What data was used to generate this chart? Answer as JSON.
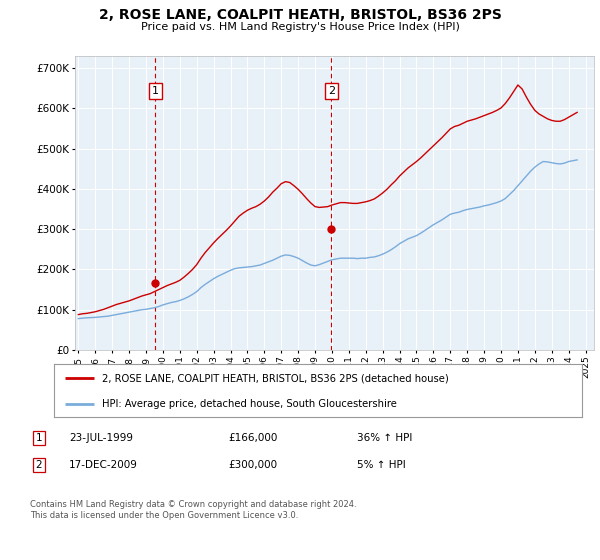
{
  "title": "2, ROSE LANE, COALPIT HEATH, BRISTOL, BS36 2PS",
  "subtitle": "Price paid vs. HM Land Registry's House Price Index (HPI)",
  "background_color": "#ffffff",
  "plot_bg_color": "#e8f0f8",
  "grid_color": "#ffffff",
  "red_line_color": "#cc0000",
  "blue_line_color": "#7aacdc",
  "marker1_x": 1999.56,
  "marker1_y": 166000,
  "marker1_label": "1",
  "marker2_x": 2009.96,
  "marker2_y": 300000,
  "marker2_label": "2",
  "vline1_x": 1999.56,
  "vline2_x": 2009.96,
  "ylim": [
    0,
    730000
  ],
  "xlim": [
    1994.8,
    2025.5
  ],
  "yticks": [
    0,
    100000,
    200000,
    300000,
    400000,
    500000,
    600000,
    700000
  ],
  "ytick_labels": [
    "£0",
    "£100K",
    "£200K",
    "£300K",
    "£400K",
    "£500K",
    "£600K",
    "£700K"
  ],
  "xtick_years": [
    1995,
    1996,
    1997,
    1998,
    1999,
    2000,
    2001,
    2002,
    2003,
    2004,
    2005,
    2006,
    2007,
    2008,
    2009,
    2010,
    2011,
    2012,
    2013,
    2014,
    2015,
    2016,
    2017,
    2018,
    2019,
    2020,
    2021,
    2022,
    2023,
    2024,
    2025
  ],
  "legend_red_label": "2, ROSE LANE, COALPIT HEATH, BRISTOL, BS36 2PS (detached house)",
  "legend_blue_label": "HPI: Average price, detached house, South Gloucestershire",
  "table_rows": [
    {
      "num": "1",
      "date": "23-JUL-1999",
      "price": "£166,000",
      "hpi": "36% ↑ HPI"
    },
    {
      "num": "2",
      "date": "17-DEC-2009",
      "price": "£300,000",
      "hpi": "5% ↑ HPI"
    }
  ],
  "footnote": "Contains HM Land Registry data © Crown copyright and database right 2024.\nThis data is licensed under the Open Government Licence v3.0.",
  "hpi_blue": [
    [
      1995.0,
      78000
    ],
    [
      1995.25,
      79000
    ],
    [
      1995.5,
      80000
    ],
    [
      1995.75,
      80500
    ],
    [
      1996.0,
      81000
    ],
    [
      1996.25,
      82000
    ],
    [
      1996.5,
      83000
    ],
    [
      1996.75,
      84000
    ],
    [
      1997.0,
      86000
    ],
    [
      1997.25,
      88000
    ],
    [
      1997.5,
      90000
    ],
    [
      1997.75,
      92000
    ],
    [
      1998.0,
      94000
    ],
    [
      1998.25,
      96000
    ],
    [
      1998.5,
      98000
    ],
    [
      1998.75,
      100000
    ],
    [
      1999.0,
      101000
    ],
    [
      1999.25,
      103000
    ],
    [
      1999.5,
      105000
    ],
    [
      1999.75,
      108000
    ],
    [
      2000.0,
      112000
    ],
    [
      2000.25,
      115000
    ],
    [
      2000.5,
      118000
    ],
    [
      2000.75,
      120000
    ],
    [
      2001.0,
      123000
    ],
    [
      2001.25,
      127000
    ],
    [
      2001.5,
      132000
    ],
    [
      2001.75,
      138000
    ],
    [
      2002.0,
      145000
    ],
    [
      2002.25,
      155000
    ],
    [
      2002.5,
      163000
    ],
    [
      2002.75,
      170000
    ],
    [
      2003.0,
      177000
    ],
    [
      2003.25,
      183000
    ],
    [
      2003.5,
      188000
    ],
    [
      2003.75,
      193000
    ],
    [
      2004.0,
      198000
    ],
    [
      2004.25,
      202000
    ],
    [
      2004.5,
      204000
    ],
    [
      2004.75,
      205000
    ],
    [
      2005.0,
      206000
    ],
    [
      2005.25,
      207000
    ],
    [
      2005.5,
      209000
    ],
    [
      2005.75,
      211000
    ],
    [
      2006.0,
      215000
    ],
    [
      2006.25,
      219000
    ],
    [
      2006.5,
      223000
    ],
    [
      2006.75,
      228000
    ],
    [
      2007.0,
      233000
    ],
    [
      2007.25,
      236000
    ],
    [
      2007.5,
      235000
    ],
    [
      2007.75,
      232000
    ],
    [
      2008.0,
      228000
    ],
    [
      2008.25,
      222000
    ],
    [
      2008.5,
      216000
    ],
    [
      2008.75,
      211000
    ],
    [
      2009.0,
      209000
    ],
    [
      2009.25,
      212000
    ],
    [
      2009.5,
      216000
    ],
    [
      2009.75,
      220000
    ],
    [
      2010.0,
      224000
    ],
    [
      2010.25,
      226000
    ],
    [
      2010.5,
      228000
    ],
    [
      2010.75,
      228000
    ],
    [
      2011.0,
      228000
    ],
    [
      2011.25,
      228000
    ],
    [
      2011.5,
      227000
    ],
    [
      2011.75,
      228000
    ],
    [
      2012.0,
      228000
    ],
    [
      2012.25,
      230000
    ],
    [
      2012.5,
      231000
    ],
    [
      2012.75,
      234000
    ],
    [
      2013.0,
      238000
    ],
    [
      2013.25,
      243000
    ],
    [
      2013.5,
      249000
    ],
    [
      2013.75,
      256000
    ],
    [
      2014.0,
      264000
    ],
    [
      2014.25,
      270000
    ],
    [
      2014.5,
      276000
    ],
    [
      2014.75,
      280000
    ],
    [
      2015.0,
      284000
    ],
    [
      2015.25,
      290000
    ],
    [
      2015.5,
      297000
    ],
    [
      2015.75,
      304000
    ],
    [
      2016.0,
      311000
    ],
    [
      2016.25,
      317000
    ],
    [
      2016.5,
      323000
    ],
    [
      2016.75,
      330000
    ],
    [
      2017.0,
      337000
    ],
    [
      2017.25,
      340000
    ],
    [
      2017.5,
      342000
    ],
    [
      2017.75,
      346000
    ],
    [
      2018.0,
      349000
    ],
    [
      2018.25,
      351000
    ],
    [
      2018.5,
      353000
    ],
    [
      2018.75,
      355000
    ],
    [
      2019.0,
      358000
    ],
    [
      2019.25,
      360000
    ],
    [
      2019.5,
      363000
    ],
    [
      2019.75,
      366000
    ],
    [
      2020.0,
      370000
    ],
    [
      2020.25,
      376000
    ],
    [
      2020.5,
      386000
    ],
    [
      2020.75,
      396000
    ],
    [
      2021.0,
      408000
    ],
    [
      2021.25,
      420000
    ],
    [
      2021.5,
      432000
    ],
    [
      2021.75,
      444000
    ],
    [
      2022.0,
      454000
    ],
    [
      2022.25,
      462000
    ],
    [
      2022.5,
      468000
    ],
    [
      2022.75,
      467000
    ],
    [
      2023.0,
      465000
    ],
    [
      2023.25,
      463000
    ],
    [
      2023.5,
      462000
    ],
    [
      2023.75,
      464000
    ],
    [
      2024.0,
      468000
    ],
    [
      2024.25,
      470000
    ],
    [
      2024.5,
      472000
    ]
  ],
  "price_red": [
    [
      1995.0,
      88000
    ],
    [
      1995.25,
      90000
    ],
    [
      1995.5,
      91000
    ],
    [
      1995.75,
      93000
    ],
    [
      1996.0,
      95000
    ],
    [
      1996.25,
      98000
    ],
    [
      1996.5,
      101000
    ],
    [
      1996.75,
      105000
    ],
    [
      1997.0,
      109000
    ],
    [
      1997.25,
      113000
    ],
    [
      1997.5,
      116000
    ],
    [
      1997.75,
      119000
    ],
    [
      1998.0,
      122000
    ],
    [
      1998.25,
      126000
    ],
    [
      1998.5,
      130000
    ],
    [
      1998.75,
      134000
    ],
    [
      1999.0,
      137000
    ],
    [
      1999.25,
      140000
    ],
    [
      1999.5,
      145000
    ],
    [
      1999.75,
      150000
    ],
    [
      2000.0,
      155000
    ],
    [
      2000.25,
      160000
    ],
    [
      2000.5,
      164000
    ],
    [
      2000.75,
      168000
    ],
    [
      2001.0,
      173000
    ],
    [
      2001.25,
      181000
    ],
    [
      2001.5,
      190000
    ],
    [
      2001.75,
      200000
    ],
    [
      2002.0,
      212000
    ],
    [
      2002.25,
      228000
    ],
    [
      2002.5,
      242000
    ],
    [
      2002.75,
      254000
    ],
    [
      2003.0,
      266000
    ],
    [
      2003.25,
      277000
    ],
    [
      2003.5,
      287000
    ],
    [
      2003.75,
      297000
    ],
    [
      2004.0,
      308000
    ],
    [
      2004.25,
      320000
    ],
    [
      2004.5,
      332000
    ],
    [
      2004.75,
      340000
    ],
    [
      2005.0,
      347000
    ],
    [
      2005.25,
      352000
    ],
    [
      2005.5,
      356000
    ],
    [
      2005.75,
      362000
    ],
    [
      2006.0,
      370000
    ],
    [
      2006.25,
      380000
    ],
    [
      2006.5,
      392000
    ],
    [
      2006.75,
      402000
    ],
    [
      2007.0,
      413000
    ],
    [
      2007.25,
      418000
    ],
    [
      2007.5,
      416000
    ],
    [
      2007.75,
      408000
    ],
    [
      2008.0,
      399000
    ],
    [
      2008.25,
      388000
    ],
    [
      2008.5,
      376000
    ],
    [
      2008.75,
      365000
    ],
    [
      2009.0,
      356000
    ],
    [
      2009.25,
      354000
    ],
    [
      2009.5,
      355000
    ],
    [
      2009.75,
      356000
    ],
    [
      2010.0,
      360000
    ],
    [
      2010.25,
      363000
    ],
    [
      2010.5,
      366000
    ],
    [
      2010.75,
      366000
    ],
    [
      2011.0,
      365000
    ],
    [
      2011.25,
      364000
    ],
    [
      2011.5,
      364000
    ],
    [
      2011.75,
      366000
    ],
    [
      2012.0,
      368000
    ],
    [
      2012.25,
      371000
    ],
    [
      2012.5,
      375000
    ],
    [
      2012.75,
      382000
    ],
    [
      2013.0,
      390000
    ],
    [
      2013.25,
      399000
    ],
    [
      2013.5,
      410000
    ],
    [
      2013.75,
      420000
    ],
    [
      2014.0,
      432000
    ],
    [
      2014.25,
      442000
    ],
    [
      2014.5,
      452000
    ],
    [
      2014.75,
      460000
    ],
    [
      2015.0,
      468000
    ],
    [
      2015.25,
      477000
    ],
    [
      2015.5,
      487000
    ],
    [
      2015.75,
      497000
    ],
    [
      2016.0,
      507000
    ],
    [
      2016.25,
      517000
    ],
    [
      2016.5,
      527000
    ],
    [
      2016.75,
      538000
    ],
    [
      2017.0,
      549000
    ],
    [
      2017.25,
      555000
    ],
    [
      2017.5,
      558000
    ],
    [
      2017.75,
      563000
    ],
    [
      2018.0,
      568000
    ],
    [
      2018.25,
      571000
    ],
    [
      2018.5,
      574000
    ],
    [
      2018.75,
      578000
    ],
    [
      2019.0,
      582000
    ],
    [
      2019.25,
      586000
    ],
    [
      2019.5,
      590000
    ],
    [
      2019.75,
      595000
    ],
    [
      2020.0,
      601000
    ],
    [
      2020.25,
      612000
    ],
    [
      2020.5,
      626000
    ],
    [
      2020.75,
      642000
    ],
    [
      2021.0,
      658000
    ],
    [
      2021.25,
      648000
    ],
    [
      2021.5,
      628000
    ],
    [
      2021.75,
      610000
    ],
    [
      2022.0,
      595000
    ],
    [
      2022.25,
      586000
    ],
    [
      2022.5,
      580000
    ],
    [
      2022.75,
      574000
    ],
    [
      2023.0,
      570000
    ],
    [
      2023.25,
      568000
    ],
    [
      2023.5,
      568000
    ],
    [
      2023.75,
      572000
    ],
    [
      2024.0,
      578000
    ],
    [
      2024.25,
      584000
    ],
    [
      2024.5,
      590000
    ]
  ]
}
